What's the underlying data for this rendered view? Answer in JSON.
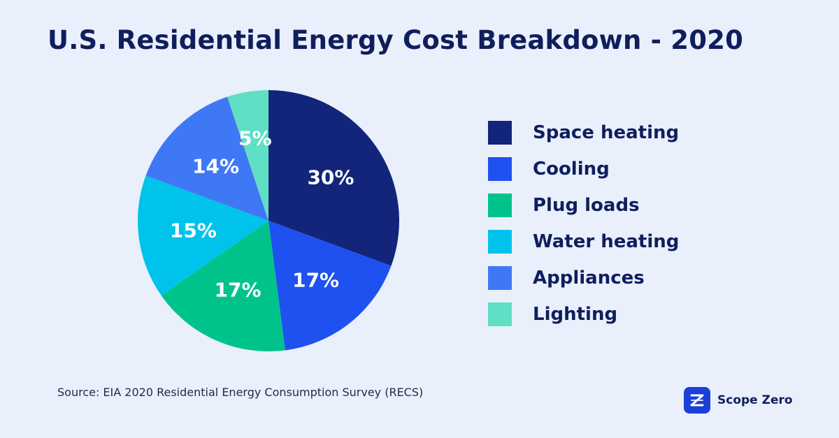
{
  "title": "U.S. Residential Energy Cost Breakdown - 2020",
  "source": "Source: EIA 2020 Residential Energy Consumption Survey (RECS)",
  "brand": {
    "name": "Scope Zero",
    "icon": "scope-zero-logo-icon"
  },
  "chart_data": {
    "type": "pie",
    "title": "U.S. Residential Energy Cost Breakdown - 2020",
    "categories": [
      "Space heating",
      "Cooling",
      "Plug loads",
      "Water heating",
      "Appliances",
      "Lighting"
    ],
    "values": [
      30,
      17,
      17,
      15,
      14,
      5
    ],
    "labels": [
      "30%",
      "17%",
      "17%",
      "15%",
      "14%",
      "5%"
    ],
    "colors": [
      "#12257a",
      "#1f50f0",
      "#00c38c",
      "#00c3ec",
      "#3f78f5",
      "#5fe0c4"
    ],
    "legend_position": "right"
  }
}
